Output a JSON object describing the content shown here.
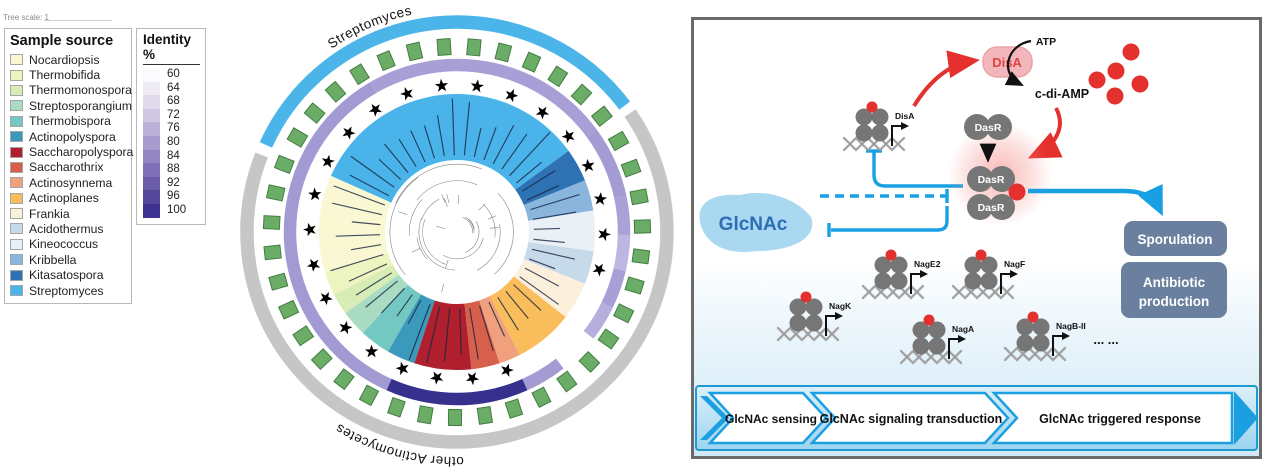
{
  "colors": {
    "accent_blue": "#18a0e2",
    "red": "#e4312e",
    "protein_gray": "#767676",
    "outcome_box": "#6b7f9f",
    "outer_ring_blue": "#4bb4e9",
    "outer_ring_gray": "#c6c6c6",
    "marker_green": "#6bad66",
    "marker_green_border": "#427c42",
    "dna_gray": "#9b9b9b",
    "glcnac_blob": "#a9d8f0",
    "glcnac_text": "#2c6fb7",
    "disa_box_fill": "#f3b6ba",
    "disa_box_text": "#e04343"
  },
  "tree": {
    "scale_label": "Tree scale: 1",
    "top_arc_label": "Streptomyces",
    "bottom_arc_label": "other Actinomycetes",
    "legend_sample_source": {
      "title": "Sample source",
      "items": [
        {
          "label": "Nocardiopsis",
          "color": "#f9f8d3"
        },
        {
          "label": "Thermobifida",
          "color": "#edf4bf"
        },
        {
          "label": "Thermomonospora",
          "color": "#d8ecb6"
        },
        {
          "label": "Streptosporangium",
          "color": "#aadcc3"
        },
        {
          "label": "Thermobispora",
          "color": "#74c8c2"
        },
        {
          "label": "Actinopolyspora",
          "color": "#3b9abb"
        },
        {
          "label": "Saccharopolyspora",
          "color": "#b01f2e"
        },
        {
          "label": "Saccharothrix",
          "color": "#d7604d"
        },
        {
          "label": "Actinosynnema",
          "color": "#f0a07c"
        },
        {
          "label": "Actinoplanes",
          "color": "#fabd5c"
        },
        {
          "label": "Frankia",
          "color": "#fcf0dd"
        },
        {
          "label": "Acidothermus",
          "color": "#c6daea"
        },
        {
          "label": "Kineococcus",
          "color": "#e9f0f6"
        },
        {
          "label": "Kribbella",
          "color": "#8ab5dc"
        },
        {
          "label": "Kitasatospora",
          "color": "#2e72b4"
        },
        {
          "label": "Streptomyces",
          "color": "#4ab4ea"
        }
      ]
    },
    "legend_identity": {
      "title": "Identity %",
      "steps": [
        {
          "label": "60",
          "color": "#fbfafd"
        },
        {
          "label": "64",
          "color": "#eeebf5"
        },
        {
          "label": "68",
          "color": "#dfdbec"
        },
        {
          "label": "72",
          "color": "#cdc7e2"
        },
        {
          "label": "76",
          "color": "#b9b1d8"
        },
        {
          "label": "80",
          "color": "#a59bcd"
        },
        {
          "label": "84",
          "color": "#9186c2"
        },
        {
          "label": "88",
          "color": "#7d70b6"
        },
        {
          "label": "92",
          "color": "#6a5ca9"
        },
        {
          "label": "96",
          "color": "#55489b"
        },
        {
          "label": "100",
          "color": "#3f3191"
        }
      ]
    },
    "sectors": [
      {
        "name": "Streptomyces",
        "color": "#4ab4ea",
        "from": 36,
        "to": 156
      },
      {
        "name": "Nocardiopsis",
        "color": "#f9f8d3",
        "from": 156,
        "to": 197
      },
      {
        "name": "Thermobifida",
        "color": "#edf4bf",
        "from": 197,
        "to": 207
      },
      {
        "name": "Thermomonospora",
        "color": "#d8ecb6",
        "from": 207,
        "to": 216
      },
      {
        "name": "Streptosporangium",
        "color": "#aadcc3",
        "from": 216,
        "to": 227
      },
      {
        "name": "Thermobispora",
        "color": "#74c8c2",
        "from": 227,
        "to": 240
      },
      {
        "name": "Actinopolyspora",
        "color": "#3b9abb",
        "from": 240,
        "to": 252
      },
      {
        "name": "Saccharopolyspora",
        "color": "#b01f2e",
        "from": 252,
        "to": 276
      },
      {
        "name": "Saccharothrix",
        "color": "#d7604d",
        "from": 276,
        "to": 288
      },
      {
        "name": "Actinosynnema",
        "color": "#f0a07c",
        "from": 288,
        "to": 297
      },
      {
        "name": "Actinoplanes",
        "color": "#fabd5c",
        "from": 297,
        "to": 322
      },
      {
        "name": "Frankia",
        "color": "#fcf0dd",
        "from": 322,
        "to": 338
      },
      {
        "name": "Acidothermus",
        "color": "#c6daea",
        "from": 338,
        "to": 352
      },
      {
        "name": "Kineococcus",
        "color": "#e9f0f6",
        "from": 352,
        "to": 369
      },
      {
        "name": "Kribbella",
        "color": "#8ab5dc",
        "from": 369,
        "to": 382
      },
      {
        "name": "Kitasatospora",
        "color": "#2e72b4",
        "from": 382,
        "to": 396
      }
    ],
    "identity_ring_segments": [
      {
        "from": 36,
        "to": 120,
        "color": "#a89fd6"
      },
      {
        "from": 120,
        "to": 246,
        "color": "#a29ad2"
      },
      {
        "from": 246,
        "to": 294,
        "color": "#38308d"
      },
      {
        "from": 294,
        "to": 308,
        "color": "#a49bd3"
      },
      {
        "from": 322,
        "to": 334,
        "color": "#b7aede"
      },
      {
        "from": 334,
        "to": 347,
        "color": "#a89fd7"
      },
      {
        "from": 347,
        "to": 359,
        "color": "#beb6e2"
      },
      {
        "from": 359,
        "to": 372,
        "color": "#aaa1d8"
      },
      {
        "from": 372,
        "to": 396,
        "color": "#a49bd3"
      }
    ],
    "outer_ring": {
      "blue_from": 37,
      "blue_to": 155.5,
      "gray_from": 158.5,
      "gray_to": 394.5
    },
    "marker_count": 39,
    "star_count": 26
  },
  "pathway": {
    "atp": "ATP",
    "c_di_amp": "c-di-AMP",
    "disa_box": "DisA",
    "dasr": "DasR",
    "glcnac": "GlcNAc",
    "gene_motifs": [
      {
        "label": "DisA"
      },
      {
        "label": "NagK"
      },
      {
        "label": "NagE2"
      },
      {
        "label": "NagF"
      },
      {
        "label": "NagA"
      },
      {
        "label": "NagB-II"
      }
    ],
    "ellipsis": "... ...",
    "outcomes": [
      {
        "lines": [
          "Sporulation"
        ]
      },
      {
        "lines": [
          "Antibiotic",
          "production"
        ]
      }
    ],
    "banner": [
      {
        "label": "GlcNAc sensing"
      },
      {
        "label": "GlcNAc signaling transduction"
      },
      {
        "label": "GlcNAc triggered response"
      }
    ]
  }
}
